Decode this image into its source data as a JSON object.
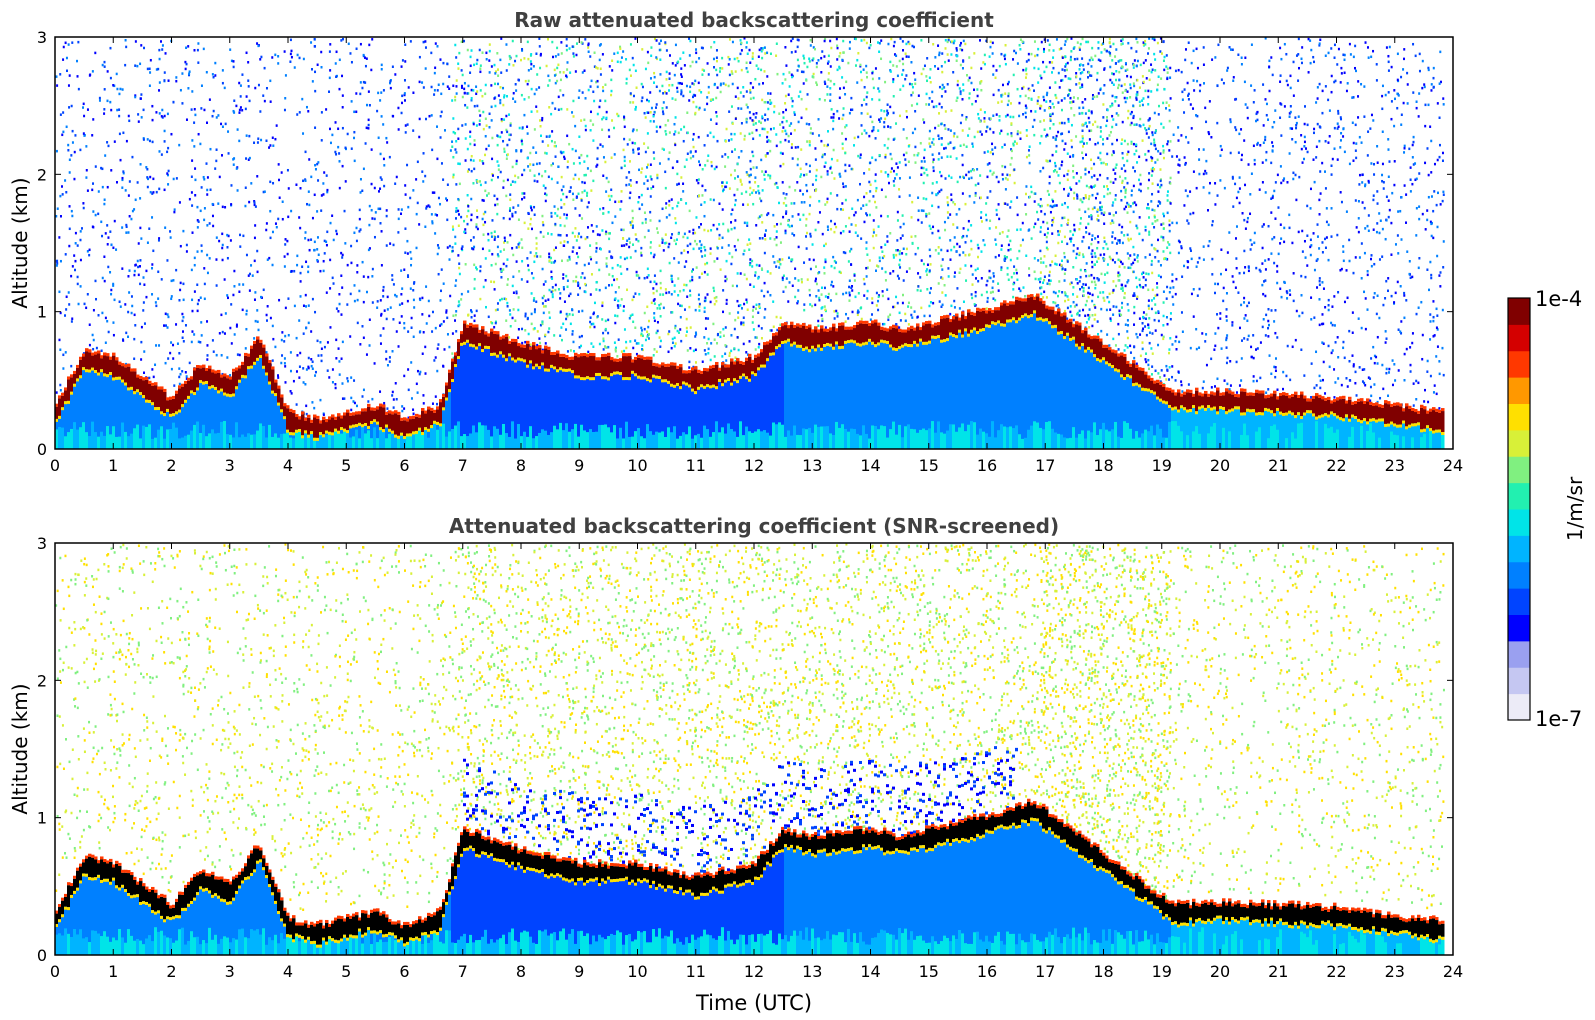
{
  "chart_data": [
    {
      "type": "heatmap",
      "title": "Raw attenuated backscattering coefficient",
      "xlabel": "",
      "ylabel": "Altitude (km)",
      "xlim": [
        0,
        24
      ],
      "ylim": [
        0,
        3
      ],
      "xticks": [
        "0",
        "1",
        "2",
        "3",
        "4",
        "5",
        "6",
        "7",
        "8",
        "9",
        "10",
        "11",
        "12",
        "13",
        "14",
        "15",
        "16",
        "17",
        "18",
        "19",
        "20",
        "21",
        "22",
        "23",
        "24"
      ],
      "yticks": [
        "0",
        "1",
        "2",
        "3"
      ],
      "grid": false,
      "layer_height_km": [
        [
          0.0,
          0.25
        ],
        [
          0.5,
          0.65
        ],
        [
          1.0,
          0.6
        ],
        [
          1.5,
          0.45
        ],
        [
          2.0,
          0.3
        ],
        [
          2.5,
          0.55
        ],
        [
          3.0,
          0.45
        ],
        [
          3.5,
          0.75
        ],
        [
          4.0,
          0.2
        ],
        [
          4.5,
          0.15
        ],
        [
          5.0,
          0.2
        ],
        [
          5.5,
          0.25
        ],
        [
          6.0,
          0.15
        ],
        [
          6.6,
          0.25
        ],
        [
          7.0,
          0.85
        ],
        [
          8.0,
          0.7
        ],
        [
          9.0,
          0.6
        ],
        [
          10.0,
          0.6
        ],
        [
          11.0,
          0.5
        ],
        [
          12.0,
          0.6
        ],
        [
          12.5,
          0.85
        ],
        [
          13.0,
          0.8
        ],
        [
          14.0,
          0.85
        ],
        [
          14.5,
          0.8
        ],
        [
          16.0,
          0.95
        ],
        [
          16.8,
          1.05
        ],
        [
          19.2,
          0.35
        ],
        [
          20.0,
          0.35
        ],
        [
          21.0,
          0.33
        ],
        [
          22.0,
          0.3
        ],
        [
          23.0,
          0.25
        ],
        [
          23.8,
          0.2
        ]
      ]
    },
    {
      "type": "heatmap",
      "title": "Attenuated backscattering coefficient (SNR-screened)",
      "xlabel": "Time (UTC)",
      "ylabel": "Altitude (km)",
      "xlim": [
        0,
        24
      ],
      "ylim": [
        0,
        3
      ],
      "xticks": [
        "0",
        "1",
        "2",
        "3",
        "4",
        "5",
        "6",
        "7",
        "8",
        "9",
        "10",
        "11",
        "12",
        "13",
        "14",
        "15",
        "16",
        "17",
        "18",
        "19",
        "20",
        "21",
        "22",
        "23",
        "24"
      ],
      "yticks": [
        "0",
        "1",
        "2",
        "3"
      ],
      "grid": false,
      "layer_height_km": [
        [
          0.0,
          0.25
        ],
        [
          0.5,
          0.65
        ],
        [
          1.0,
          0.6
        ],
        [
          1.5,
          0.45
        ],
        [
          2.0,
          0.3
        ],
        [
          2.5,
          0.55
        ],
        [
          3.0,
          0.45
        ],
        [
          3.5,
          0.75
        ],
        [
          4.0,
          0.2
        ],
        [
          4.5,
          0.15
        ],
        [
          5.0,
          0.2
        ],
        [
          5.5,
          0.25
        ],
        [
          6.0,
          0.15
        ],
        [
          6.6,
          0.25
        ],
        [
          7.0,
          0.85
        ],
        [
          8.0,
          0.7
        ],
        [
          9.0,
          0.6
        ],
        [
          10.0,
          0.6
        ],
        [
          11.0,
          0.5
        ],
        [
          12.0,
          0.6
        ],
        [
          12.5,
          0.85
        ],
        [
          13.0,
          0.8
        ],
        [
          14.0,
          0.85
        ],
        [
          14.5,
          0.8
        ],
        [
          16.0,
          0.95
        ],
        [
          16.8,
          1.05
        ],
        [
          19.2,
          0.3
        ],
        [
          20.0,
          0.32
        ],
        [
          21.0,
          0.3
        ],
        [
          22.0,
          0.28
        ],
        [
          23.0,
          0.22
        ],
        [
          23.8,
          0.18
        ]
      ]
    }
  ],
  "colorbar": {
    "label": "1/m/sr",
    "max_label": "1e-4",
    "min_label": "1e-7",
    "colors": [
      "#ecebf7",
      "#c5c7f2",
      "#9aa0f0",
      "#0000ff",
      "#0044ff",
      "#0080ff",
      "#00b4ff",
      "#00e4e8",
      "#22f0b0",
      "#80f080",
      "#d8f038",
      "#ffe000",
      "#ff9800",
      "#ff3800",
      "#d40000",
      "#800000"
    ]
  }
}
